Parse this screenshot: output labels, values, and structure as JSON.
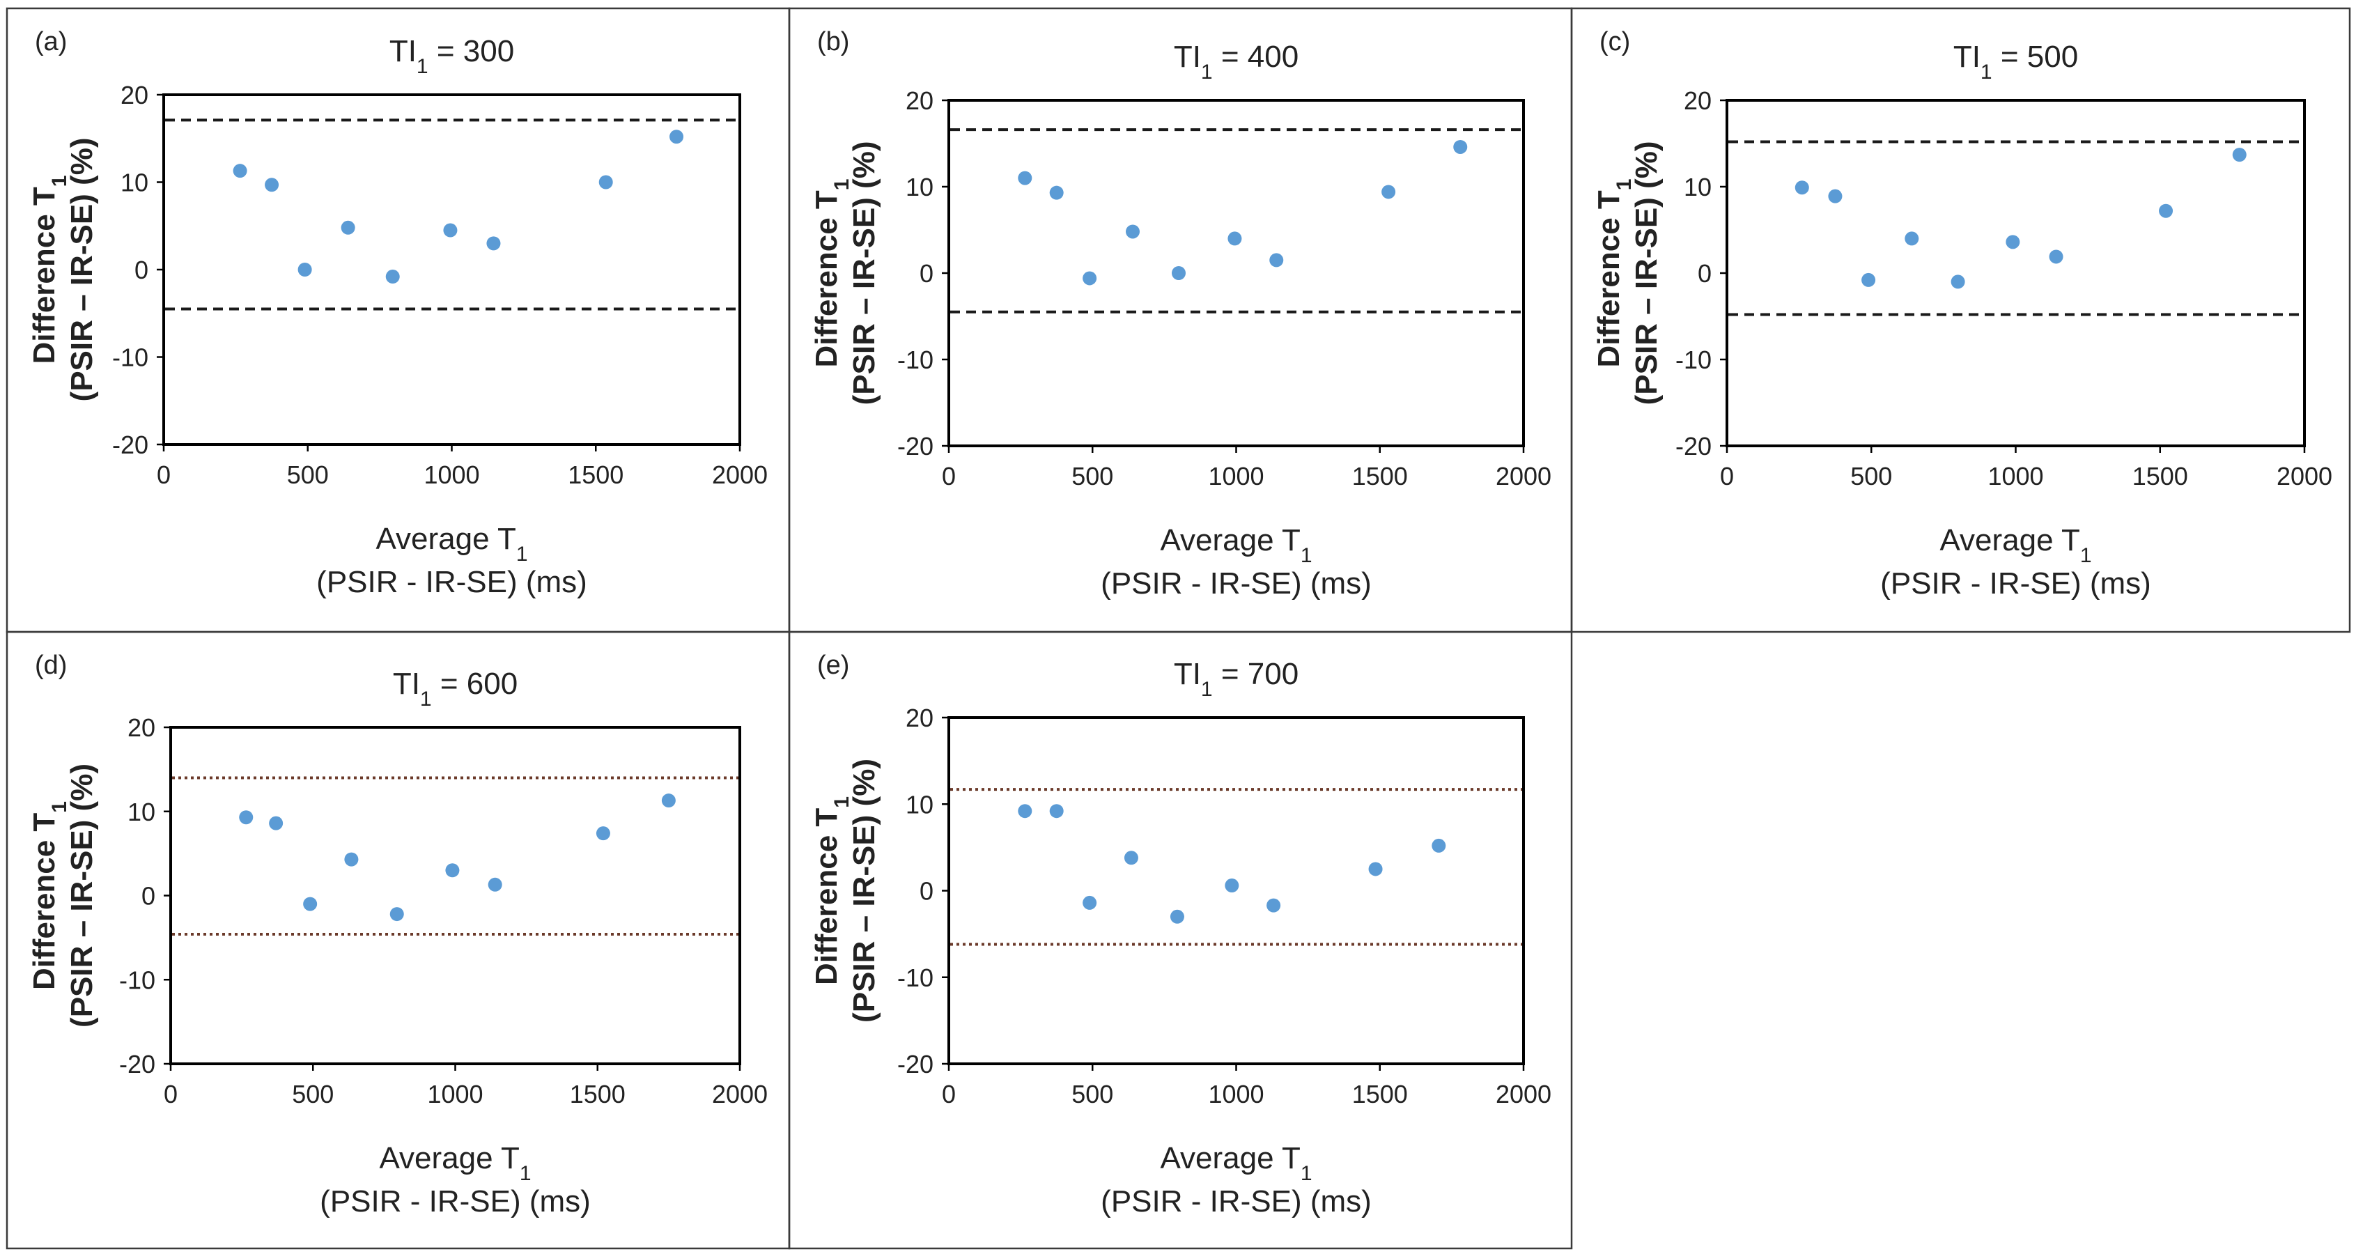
{
  "figure": {
    "panel_border_color": "#3a3a3a",
    "point_color": "#5b9bd5"
  },
  "chart_data": [
    {
      "type": "scatter",
      "panel": "(a)",
      "title_prefix": "TI",
      "title_sub": "1",
      "title_value": " = 300",
      "xlabel_line1": "Average T",
      "xlabel_sub": "1",
      "xlabel_line2": "(PSIR - IR-SE) (ms)",
      "ylabel_line1": "Difference T",
      "ylabel_sub": "1",
      "ylabel_line2": "(PSIR – IR-SE) (%)",
      "xlim": [
        0,
        2000
      ],
      "ylim": [
        -20,
        20
      ],
      "xticks": [
        0,
        500,
        1000,
        1500,
        2000
      ],
      "yticks": [
        -20,
        -10,
        0,
        10,
        20
      ],
      "x": [
        265,
        375,
        490,
        640,
        795,
        995,
        1145,
        1535,
        1780
      ],
      "y": [
        11.3,
        9.7,
        0,
        4.8,
        -0.8,
        4.5,
        3.0,
        10.0,
        15.2
      ],
      "limits": [
        17.1,
        -4.5
      ],
      "limit_style": "dashed",
      "limit_color": "#1a1a1a"
    },
    {
      "type": "scatter",
      "panel": "(b)",
      "title_prefix": "TI",
      "title_sub": "1",
      "title_value": " = 400",
      "xlabel_line1": "Average T",
      "xlabel_sub": "1",
      "xlabel_line2": "(PSIR - IR-SE) (ms)",
      "ylabel_line1": "Difference T",
      "ylabel_sub": "1",
      "ylabel_line2": "(PSIR – IR-SE) (%)",
      "xlim": [
        0,
        2000
      ],
      "ylim": [
        -20,
        20
      ],
      "xticks": [
        0,
        500,
        1000,
        1500,
        2000
      ],
      "yticks": [
        -20,
        -10,
        0,
        10,
        20
      ],
      "x": [
        265,
        375,
        490,
        640,
        800,
        995,
        1140,
        1530,
        1780
      ],
      "y": [
        11.0,
        9.3,
        -0.6,
        4.8,
        0,
        4.0,
        1.5,
        9.4,
        14.6
      ],
      "limits": [
        16.6,
        -4.5
      ],
      "limit_style": "dashed",
      "limit_color": "#1a1a1a"
    },
    {
      "type": "scatter",
      "panel": "(c)",
      "title_prefix": "TI",
      "title_sub": "1",
      "title_value": " = 500",
      "xlabel_line1": "Average T",
      "xlabel_sub": "1",
      "xlabel_line2": "(PSIR - IR-SE) (ms)",
      "ylabel_line1": "Difference T",
      "ylabel_sub": "1",
      "ylabel_line2": "(PSIR – IR-SE) (%)",
      "xlim": [
        0,
        2000
      ],
      "ylim": [
        -20,
        20
      ],
      "xticks": [
        0,
        500,
        1000,
        1500,
        2000
      ],
      "yticks": [
        -20,
        -10,
        0,
        10,
        20
      ],
      "x": [
        260,
        375,
        490,
        640,
        800,
        990,
        1140,
        1520,
        1775
      ],
      "y": [
        9.9,
        8.9,
        -0.8,
        4.0,
        -1.0,
        3.6,
        1.9,
        7.2,
        13.7
      ],
      "limits": [
        15.2,
        -4.8
      ],
      "limit_style": "dashed",
      "limit_color": "#1a1a1a"
    },
    {
      "type": "scatter",
      "panel": "(d)",
      "title_prefix": "TI",
      "title_sub": "1",
      "title_value": " = 600",
      "xlabel_line1": "Average T",
      "xlabel_sub": "1",
      "xlabel_line2": "(PSIR - IR-SE) (ms)",
      "ylabel_line1": "Difference T",
      "ylabel_sub": "1",
      "ylabel_line2": "(PSIR – IR-SE) (%)",
      "xlim": [
        0,
        2000
      ],
      "ylim": [
        -20,
        20
      ],
      "xticks": [
        0,
        500,
        1000,
        1500,
        2000
      ],
      "yticks": [
        -20,
        -10,
        0,
        10,
        20
      ],
      "x": [
        265,
        370,
        490,
        635,
        795,
        990,
        1140,
        1520,
        1750
      ],
      "y": [
        9.3,
        8.6,
        -1.0,
        4.3,
        -2.2,
        3.0,
        1.3,
        7.4,
        11.3
      ],
      "limits": [
        14.0,
        -4.6
      ],
      "limit_style": "dotted",
      "limit_color": "#6b3a2a"
    },
    {
      "type": "scatter",
      "panel": "(e)",
      "title_prefix": "TI",
      "title_sub": "1",
      "title_value": " = 700",
      "xlabel_line1": "Average T",
      "xlabel_sub": "1",
      "xlabel_line2": "(PSIR - IR-SE) (ms)",
      "ylabel_line1": "Difference T",
      "ylabel_sub": "1",
      "ylabel_line2": "(PSIR – IR-SE) (%)",
      "xlim": [
        0,
        2000
      ],
      "ylim": [
        -20,
        20
      ],
      "xticks": [
        0,
        500,
        1000,
        1500,
        2000
      ],
      "yticks": [
        -20,
        -10,
        0,
        10,
        20
      ],
      "x": [
        265,
        375,
        490,
        635,
        795,
        985,
        1130,
        1485,
        1705
      ],
      "y": [
        9.2,
        9.2,
        -1.4,
        3.8,
        -3.0,
        0.6,
        -1.7,
        2.5,
        5.2
      ],
      "limits": [
        11.7,
        -6.2
      ],
      "limit_style": "dotted",
      "limit_color": "#6b3a2a"
    }
  ]
}
